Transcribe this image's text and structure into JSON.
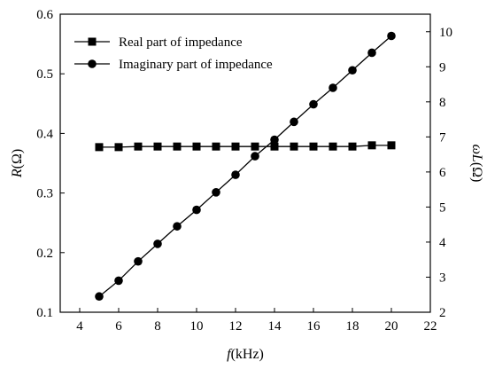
{
  "chart_data": {
    "type": "line",
    "x": [
      5,
      6,
      7,
      8,
      9,
      10,
      11,
      12,
      13,
      14,
      15,
      16,
      17,
      18,
      19,
      20
    ],
    "xlim": [
      3,
      22
    ],
    "xticks": [
      4,
      6,
      8,
      10,
      12,
      14,
      16,
      18,
      20,
      22
    ],
    "xlabel_symbol": "f",
    "xlabel_unit": "(kHz)",
    "ylim_left": [
      0.1,
      0.6
    ],
    "yticks_left": [
      0.1,
      0.2,
      0.3,
      0.4,
      0.5,
      0.6
    ],
    "ylabel_left_symbol": "R",
    "ylabel_left_unit": "(Ω)",
    "ylim_right": [
      2,
      10.5
    ],
    "yticks_right": [
      2,
      3,
      4,
      5,
      6,
      7,
      8,
      9,
      10
    ],
    "ylabel_right_symbol": "ωL",
    "ylabel_right_unit": "(Ω)",
    "legend_position": "top-left",
    "grid": false,
    "series": [
      {
        "name": "Real part of impedance",
        "axis": "left",
        "marker": "square",
        "color": "#000000",
        "values": [
          0.377,
          0.377,
          0.378,
          0.378,
          0.378,
          0.378,
          0.378,
          0.378,
          0.378,
          0.378,
          0.378,
          0.378,
          0.378,
          0.378,
          0.38,
          0.38
        ]
      },
      {
        "name": "Imaginary part of impedance",
        "axis": "right",
        "marker": "circle",
        "color": "#000000",
        "values": [
          2.45,
          2.9,
          3.45,
          3.95,
          4.45,
          4.92,
          5.42,
          5.92,
          6.45,
          6.92,
          7.43,
          7.93,
          8.4,
          8.9,
          9.4,
          9.88
        ]
      }
    ]
  }
}
